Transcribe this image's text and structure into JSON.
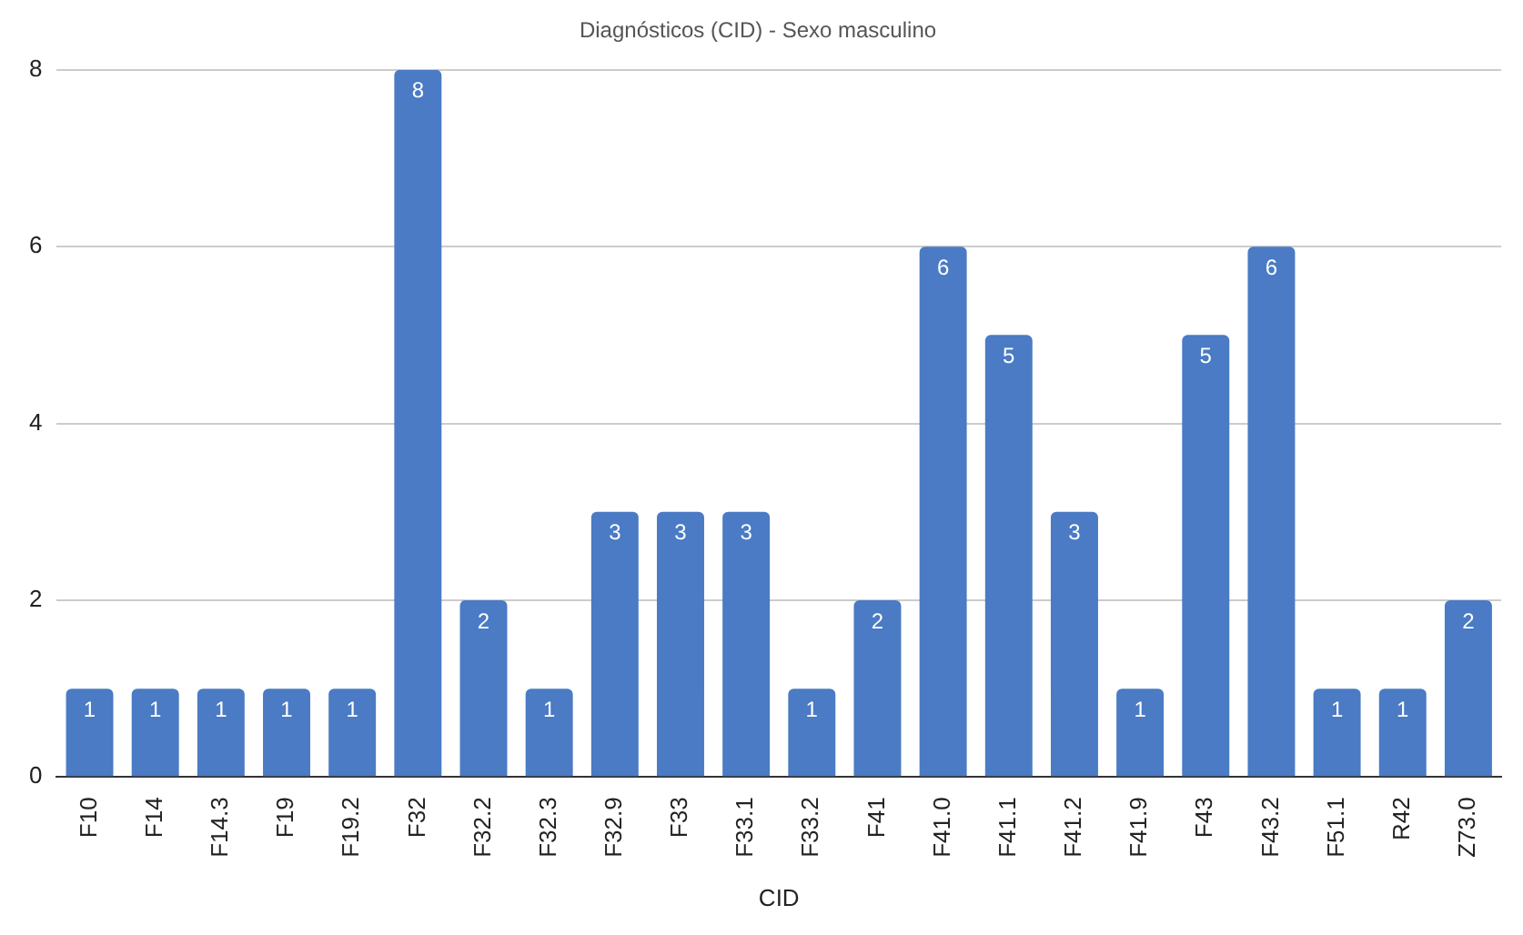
{
  "chart_data": {
    "type": "bar",
    "title": "Diagnósticos (CID) - Sexo masculino",
    "xlabel": "CID",
    "categories": [
      "F10",
      "F14",
      "F14.3",
      "F19",
      "F19.2",
      "F32",
      "F32.2",
      "F32.3",
      "F32.9",
      "F33",
      "F33.1",
      "F33.2",
      "F41",
      "F41.0",
      "F41.1",
      "F41.2",
      "F41.9",
      "F43",
      "F43.2",
      "F51.1",
      "R42",
      "Z73.0"
    ],
    "values": [
      1,
      1,
      1,
      1,
      1,
      8,
      2,
      1,
      3,
      3,
      3,
      1,
      2,
      6,
      5,
      3,
      1,
      5,
      6,
      1,
      1,
      2
    ],
    "color": "#4a7bc4",
    "ylim": [
      0,
      8
    ],
    "yticks": [
      0,
      2,
      4,
      6,
      8
    ],
    "grid": "y",
    "legend": false,
    "data_labels": true
  }
}
